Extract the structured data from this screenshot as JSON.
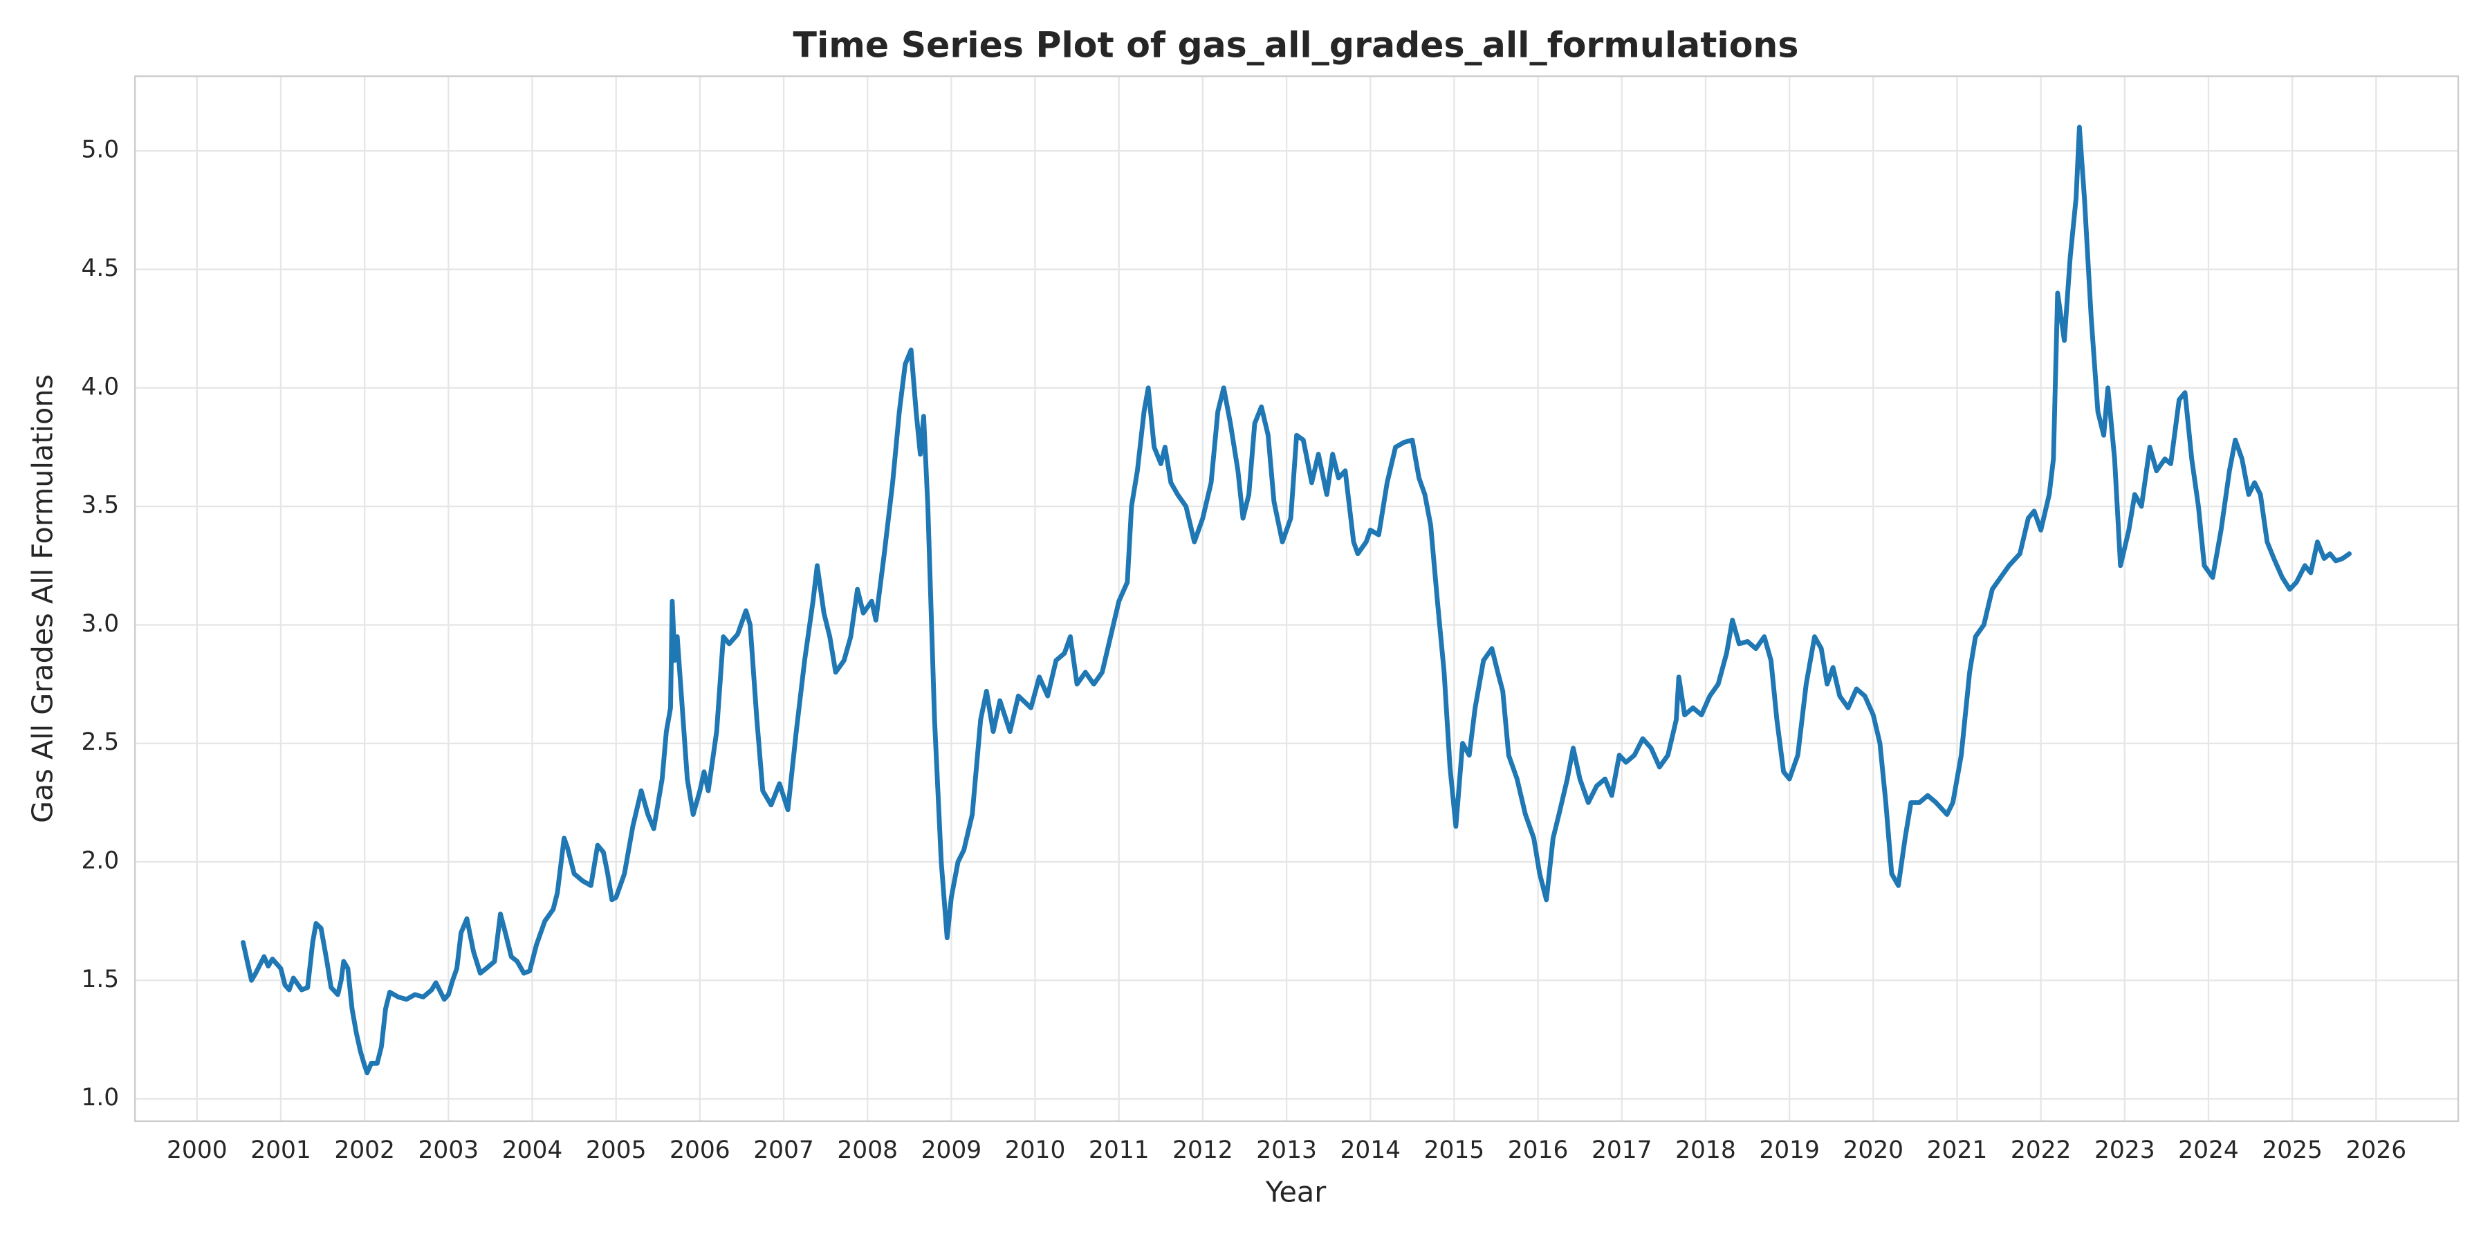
{
  "chart_data": {
    "type": "line",
    "title": "Time Series Plot of gas_all_grades_all_formulations",
    "xlabel": "Year",
    "ylabel": "Gas All Grades All Formulations",
    "color": "#1f77b4",
    "grid": true,
    "xlim": [
      1999.26,
      2026.98
    ],
    "ylim": [
      0.906,
      5.315
    ],
    "xticks": [
      2000,
      2001,
      2002,
      2003,
      2004,
      2005,
      2006,
      2007,
      2008,
      2009,
      2010,
      2011,
      2012,
      2013,
      2014,
      2015,
      2016,
      2017,
      2018,
      2019,
      2020,
      2021,
      2022,
      2023,
      2024,
      2025,
      2026
    ],
    "yticks": [
      {
        "value": 1,
        "label": "1.0"
      },
      1.5,
      {
        "value": 2,
        "label": "2.0"
      },
      2.5,
      {
        "value": 3,
        "label": "3.0"
      },
      3.5,
      {
        "value": 4,
        "label": "4.0"
      },
      4.5,
      {
        "value": 5,
        "label": "5.0"
      }
    ],
    "x": [
      2000.55,
      2000.6,
      2000.65,
      2000.7,
      2000.8,
      2000.85,
      2000.9,
      2001.0,
      2001.05,
      2001.1,
      2001.15,
      2001.25,
      2001.32,
      2001.38,
      2001.42,
      2001.48,
      2001.55,
      2001.6,
      2001.68,
      2001.72,
      2001.75,
      2001.8,
      2001.85,
      2001.9,
      2001.95,
      2002.0,
      2002.03,
      2002.08,
      2002.15,
      2002.2,
      2002.25,
      2002.3,
      2002.4,
      2002.5,
      2002.6,
      2002.7,
      2002.8,
      2002.85,
      2002.95,
      2003.0,
      2003.05,
      2003.1,
      2003.15,
      2003.22,
      2003.3,
      2003.38,
      2003.45,
      2003.55,
      2003.62,
      2003.68,
      2003.75,
      2003.82,
      2003.9,
      2003.97,
      2004.05,
      2004.15,
      2004.25,
      2004.3,
      2004.38,
      2004.42,
      2004.5,
      2004.6,
      2004.7,
      2004.78,
      2004.85,
      2004.9,
      2004.95,
      2005.0,
      2005.1,
      2005.2,
      2005.3,
      2005.38,
      2005.45,
      2005.55,
      2005.6,
      2005.65,
      2005.67,
      2005.7,
      2005.73,
      2005.78,
      2005.85,
      2005.92,
      2006.0,
      2006.05,
      2006.1,
      2006.2,
      2006.28,
      2006.35,
      2006.45,
      2006.55,
      2006.6,
      2006.68,
      2006.75,
      2006.85,
      2006.95,
      2007.05,
      2007.15,
      2007.25,
      2007.35,
      2007.4,
      2007.48,
      2007.55,
      2007.62,
      2007.72,
      2007.8,
      2007.88,
      2007.95,
      2008.05,
      2008.1,
      2008.2,
      2008.3,
      2008.38,
      2008.45,
      2008.52,
      2008.58,
      2008.63,
      2008.67,
      2008.72,
      2008.8,
      2008.88,
      2008.95,
      2009.0,
      2009.08,
      2009.15,
      2009.25,
      2009.35,
      2009.42,
      2009.5,
      2009.58,
      2009.7,
      2009.8,
      2009.95,
      2010.05,
      2010.15,
      2010.25,
      2010.35,
      2010.42,
      2010.5,
      2010.6,
      2010.7,
      2010.8,
      2010.9,
      2011.0,
      2011.1,
      2011.15,
      2011.22,
      2011.3,
      2011.35,
      2011.42,
      2011.5,
      2011.55,
      2011.62,
      2011.7,
      2011.8,
      2011.9,
      2012.0,
      2012.1,
      2012.18,
      2012.25,
      2012.33,
      2012.42,
      2012.48,
      2012.55,
      2012.62,
      2012.7,
      2012.78,
      2012.85,
      2012.95,
      2013.05,
      2013.12,
      2013.2,
      2013.3,
      2013.38,
      2013.48,
      2013.55,
      2013.62,
      2013.7,
      2013.8,
      2013.85,
      2013.95,
      2014.0,
      2014.1,
      2014.2,
      2014.3,
      2014.4,
      2014.5,
      2014.58,
      2014.65,
      2014.72,
      2014.8,
      2014.88,
      2014.95,
      2015.02,
      2015.1,
      2015.18,
      2015.25,
      2015.35,
      2015.45,
      2015.52,
      2015.58,
      2015.65,
      2015.75,
      2015.85,
      2015.95,
      2016.02,
      2016.1,
      2016.18,
      2016.25,
      2016.35,
      2016.42,
      2016.5,
      2016.6,
      2016.7,
      2016.8,
      2016.88,
      2016.97,
      2017.05,
      2017.15,
      2017.25,
      2017.35,
      2017.45,
      2017.55,
      2017.65,
      2017.68,
      2017.75,
      2017.85,
      2017.95,
      2018.05,
      2018.15,
      2018.25,
      2018.32,
      2018.4,
      2018.5,
      2018.6,
      2018.7,
      2018.78,
      2018.85,
      2018.93,
      2019.0,
      2019.1,
      2019.2,
      2019.3,
      2019.38,
      2019.45,
      2019.52,
      2019.6,
      2019.7,
      2019.8,
      2019.9,
      2020.0,
      2020.08,
      2020.15,
      2020.22,
      2020.3,
      2020.38,
      2020.45,
      2020.55,
      2020.65,
      2020.75,
      2020.88,
      2020.95,
      2021.05,
      2021.15,
      2021.22,
      2021.32,
      2021.42,
      2021.52,
      2021.62,
      2021.75,
      2021.85,
      2021.92,
      2022.0,
      2022.1,
      2022.15,
      2022.2,
      2022.28,
      2022.35,
      2022.42,
      2022.46,
      2022.52,
      2022.6,
      2022.68,
      2022.75,
      2022.8,
      2022.88,
      2022.95,
      2023.05,
      2023.12,
      2023.2,
      2023.3,
      2023.38,
      2023.48,
      2023.55,
      2023.65,
      2023.72,
      2023.8,
      2023.88,
      2023.95,
      2024.05,
      2024.15,
      2024.25,
      2024.32,
      2024.4,
      2024.48,
      2024.55,
      2024.62,
      2024.7,
      2024.78,
      2024.88,
      2024.97,
      2025.05,
      2025.15,
      2025.22,
      2025.3,
      2025.38,
      2025.45,
      2025.52,
      2025.6,
      2025.68
    ],
    "values": [
      1.66,
      1.58,
      1.5,
      1.53,
      1.6,
      1.56,
      1.59,
      1.55,
      1.48,
      1.46,
      1.51,
      1.46,
      1.47,
      1.66,
      1.74,
      1.72,
      1.58,
      1.47,
      1.44,
      1.5,
      1.58,
      1.55,
      1.38,
      1.28,
      1.2,
      1.14,
      1.11,
      1.15,
      1.15,
      1.22,
      1.38,
      1.45,
      1.43,
      1.42,
      1.44,
      1.43,
      1.46,
      1.49,
      1.42,
      1.44,
      1.5,
      1.55,
      1.7,
      1.76,
      1.62,
      1.53,
      1.55,
      1.58,
      1.78,
      1.7,
      1.6,
      1.58,
      1.53,
      1.54,
      1.65,
      1.75,
      1.8,
      1.87,
      2.1,
      2.06,
      1.95,
      1.92,
      1.9,
      2.07,
      2.04,
      1.95,
      1.84,
      1.85,
      1.95,
      2.15,
      2.3,
      2.2,
      2.14,
      2.35,
      2.55,
      2.65,
      3.1,
      2.85,
      2.95,
      2.7,
      2.35,
      2.2,
      2.3,
      2.38,
      2.3,
      2.55,
      2.95,
      2.92,
      2.96,
      3.06,
      3.0,
      2.6,
      2.3,
      2.24,
      2.33,
      2.22,
      2.55,
      2.85,
      3.1,
      3.25,
      3.05,
      2.95,
      2.8,
      2.85,
      2.95,
      3.15,
      3.05,
      3.1,
      3.02,
      3.3,
      3.6,
      3.9,
      4.1,
      4.16,
      3.9,
      3.72,
      3.88,
      3.5,
      2.6,
      2.0,
      1.68,
      1.85,
      2.0,
      2.05,
      2.2,
      2.6,
      2.72,
      2.55,
      2.68,
      2.55,
      2.7,
      2.65,
      2.78,
      2.7,
      2.85,
      2.88,
      2.95,
      2.75,
      2.8,
      2.75,
      2.8,
      2.95,
      3.1,
      3.18,
      3.5,
      3.65,
      3.9,
      4.0,
      3.75,
      3.68,
      3.75,
      3.6,
      3.55,
      3.5,
      3.35,
      3.45,
      3.6,
      3.9,
      4.0,
      3.85,
      3.65,
      3.45,
      3.55,
      3.85,
      3.92,
      3.8,
      3.52,
      3.35,
      3.45,
      3.8,
      3.78,
      3.6,
      3.72,
      3.55,
      3.72,
      3.62,
      3.65,
      3.35,
      3.3,
      3.35,
      3.4,
      3.38,
      3.6,
      3.75,
      3.77,
      3.78,
      3.62,
      3.55,
      3.42,
      3.1,
      2.8,
      2.4,
      2.15,
      2.5,
      2.45,
      2.65,
      2.85,
      2.9,
      2.8,
      2.72,
      2.45,
      2.35,
      2.2,
      2.1,
      1.95,
      1.84,
      2.1,
      2.2,
      2.35,
      2.48,
      2.35,
      2.25,
      2.32,
      2.35,
      2.28,
      2.45,
      2.42,
      2.45,
      2.52,
      2.48,
      2.4,
      2.45,
      2.6,
      2.78,
      2.62,
      2.65,
      2.62,
      2.7,
      2.75,
      2.88,
      3.02,
      2.92,
      2.93,
      2.9,
      2.95,
      2.85,
      2.6,
      2.38,
      2.35,
      2.45,
      2.75,
      2.95,
      2.9,
      2.75,
      2.82,
      2.7,
      2.65,
      2.73,
      2.7,
      2.62,
      2.5,
      2.25,
      1.95,
      1.9,
      2.1,
      2.25,
      2.25,
      2.28,
      2.25,
      2.2,
      2.25,
      2.45,
      2.8,
      2.95,
      3.0,
      3.15,
      3.2,
      3.25,
      3.3,
      3.45,
      3.48,
      3.4,
      3.55,
      3.7,
      4.4,
      4.2,
      4.55,
      4.8,
      5.1,
      4.8,
      4.3,
      3.9,
      3.8,
      4.0,
      3.7,
      3.25,
      3.4,
      3.55,
      3.5,
      3.75,
      3.65,
      3.7,
      3.68,
      3.95,
      3.98,
      3.7,
      3.5,
      3.25,
      3.2,
      3.4,
      3.65,
      3.78,
      3.7,
      3.55,
      3.6,
      3.55,
      3.35,
      3.28,
      3.2,
      3.15,
      3.18,
      3.25,
      3.22,
      3.35,
      3.28,
      3.3,
      3.27,
      3.28,
      3.3
    ]
  }
}
